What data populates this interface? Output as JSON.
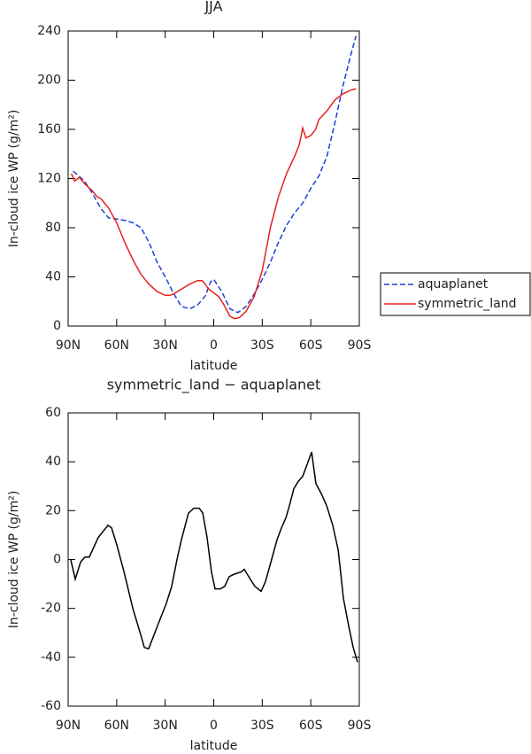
{
  "chart_data": [
    {
      "type": "line",
      "title": "JJA",
      "x_label": "latitude",
      "y_label": "In-cloud ice WP (g/m²)",
      "xlim": [
        90,
        -90
      ],
      "xticks": [
        {
          "value": 90,
          "label": "90N"
        },
        {
          "value": 60,
          "label": "60N"
        },
        {
          "value": 30,
          "label": "30N"
        },
        0,
        {
          "value": -30,
          "label": "30S"
        },
        {
          "value": -60,
          "label": "60S"
        },
        {
          "value": -90,
          "label": "90S"
        }
      ],
      "ylim": [
        0,
        240
      ],
      "yticks": [
        0,
        40,
        80,
        120,
        160,
        200,
        240
      ],
      "legend": "right",
      "series": [
        {
          "name": "aquaplanet",
          "color": "#1f3fd0",
          "dash": true,
          "x": [
            87,
            85,
            80,
            75,
            70,
            65,
            60,
            55,
            50,
            45,
            40,
            35,
            30,
            25,
            20,
            15,
            10,
            5,
            2,
            0,
            -5,
            -10,
            -15,
            -20,
            -25,
            -30,
            -35,
            -40,
            -45,
            -50,
            -55,
            -60,
            -65,
            -70,
            -75,
            -80,
            -85,
            -88
          ],
          "values": [
            126,
            124,
            118,
            108,
            96,
            88,
            87,
            86,
            84,
            80,
            68,
            52,
            40,
            27,
            16,
            14,
            17,
            25,
            36,
            38,
            28,
            14,
            11,
            16,
            26,
            38,
            52,
            68,
            82,
            92,
            100,
            112,
            122,
            138,
            166,
            196,
            222,
            236
          ]
        },
        {
          "name": "symmetric_land",
          "color": "#e8201c",
          "dash": false,
          "x": [
            88,
            86,
            83,
            80,
            75,
            72,
            70,
            65,
            60,
            55,
            50,
            45,
            40,
            35,
            30,
            27,
            25,
            20,
            15,
            10,
            7,
            3,
            0,
            -3,
            -6,
            -10,
            -13,
            -16,
            -20,
            -25,
            -30,
            -35,
            -40,
            -45,
            -50,
            -53,
            -55,
            -57,
            -60,
            -63,
            -65,
            -70,
            -75,
            -80,
            -85,
            -88
          ],
          "values": [
            124,
            118,
            121,
            116,
            110,
            105,
            104,
            96,
            84,
            68,
            54,
            42,
            34,
            28,
            25,
            25,
            26,
            30,
            34,
            37,
            37,
            30,
            27,
            24,
            18,
            8,
            6,
            7,
            12,
            24,
            45,
            80,
            105,
            124,
            138,
            148,
            161,
            153,
            155,
            160,
            168,
            175,
            184,
            189,
            192,
            193
          ]
        }
      ]
    },
    {
      "type": "line",
      "title": "symmetric_land − aquaplanet",
      "x_label": "latitude",
      "y_label": "In-cloud ice WP (g/m²)",
      "xlim": [
        90,
        -90
      ],
      "xticks": [
        {
          "value": 90,
          "label": "90N"
        },
        {
          "value": 60,
          "label": "60N"
        },
        {
          "value": 30,
          "label": "30N"
        },
        0,
        {
          "value": -30,
          "label": "30S"
        },
        {
          "value": -60,
          "label": "60S"
        },
        {
          "value": -90,
          "label": "90S"
        }
      ],
      "ylim": [
        -60,
        60
      ],
      "yticks": [
        -60,
        -40,
        -20,
        0,
        20,
        40,
        60
      ],
      "series": [
        {
          "color": "#000000",
          "dash": false,
          "x": [
            88.4,
            85.6,
            82.3,
            79.6,
            76.9,
            71.4,
            65.4,
            63.2,
            59.9,
            55.5,
            50,
            44.6,
            42.9,
            40.2,
            34.7,
            29.3,
            26,
            22.7,
            20,
            15.6,
            12.3,
            9,
            6.8,
            4.1,
            1.4,
            -0.8,
            -4.1,
            -6.8,
            -9.6,
            -12.8,
            -17.2,
            -18.9,
            -21.6,
            -25.4,
            -29.3,
            -32,
            -35.8,
            -39.1,
            -41.9,
            -44.6,
            -46.8,
            -49.5,
            -52.3,
            -55,
            -58.3,
            -60.5,
            -63.2,
            -66.5,
            -69.8,
            -73.6,
            -76.9,
            -80.2,
            -83.4,
            -86.2,
            -88.9
          ],
          "values": [
            0,
            -8,
            -1,
            1,
            1,
            9,
            14,
            13,
            6,
            -5,
            -20,
            -32,
            -36,
            -36.5,
            -27,
            -18,
            -11,
            0,
            8,
            19,
            21,
            21,
            19,
            9,
            -5,
            -12,
            -12,
            -11,
            -7,
            -6,
            -5,
            -4,
            -7,
            -11,
            -13,
            -9,
            0,
            8,
            13,
            17,
            22,
            29,
            32,
            34,
            40,
            44,
            31,
            27,
            22,
            14,
            4,
            -16,
            -27,
            -36,
            -42
          ]
        }
      ]
    }
  ]
}
